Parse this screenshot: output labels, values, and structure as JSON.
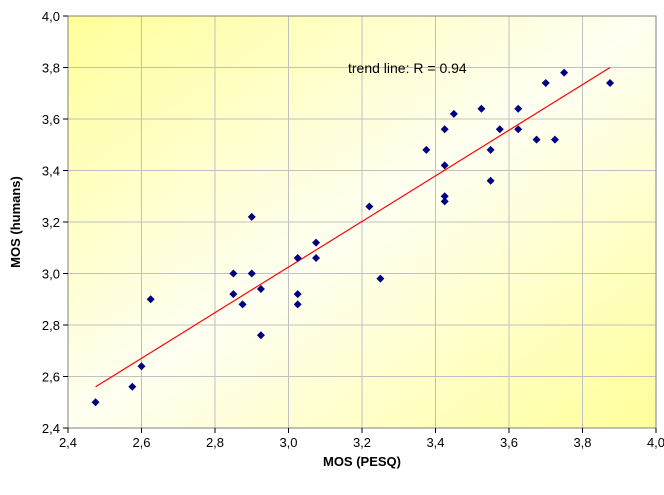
{
  "chart_data": {
    "type": "scatter",
    "xlabel": "MOS (PESQ)",
    "ylabel": "MOS (humans)",
    "xlim": [
      2.4,
      4.0
    ],
    "ylim": [
      2.4,
      4.0
    ],
    "x_ticks": [
      "2,4",
      "2,6",
      "2,8",
      "3,0",
      "3,2",
      "3,4",
      "3,6",
      "3,8",
      "4,0"
    ],
    "y_ticks": [
      "2,4",
      "2,6",
      "2,8",
      "3,0",
      "3,2",
      "3,4",
      "3,6",
      "3,8",
      "4,0"
    ],
    "x_tick_values": [
      2.4,
      2.6,
      2.8,
      3.0,
      3.2,
      3.4,
      3.6,
      3.8,
      4.0
    ],
    "y_tick_values": [
      2.4,
      2.6,
      2.8,
      3.0,
      3.2,
      3.4,
      3.6,
      3.8,
      4.0
    ],
    "grid": true,
    "points": [
      [
        2.475,
        2.5
      ],
      [
        2.575,
        2.56
      ],
      [
        2.6,
        2.64
      ],
      [
        2.625,
        2.9
      ],
      [
        2.85,
        3.0
      ],
      [
        2.85,
        2.92
      ],
      [
        2.875,
        2.88
      ],
      [
        2.9,
        3.22
      ],
      [
        2.9,
        3.0
      ],
      [
        2.925,
        2.94
      ],
      [
        2.925,
        2.76
      ],
      [
        3.025,
        3.06
      ],
      [
        3.025,
        2.92
      ],
      [
        3.025,
        2.88
      ],
      [
        3.075,
        3.12
      ],
      [
        3.075,
        3.06
      ],
      [
        3.22,
        3.26
      ],
      [
        3.25,
        2.98
      ],
      [
        3.375,
        3.48
      ],
      [
        3.425,
        3.56
      ],
      [
        3.425,
        3.42
      ],
      [
        3.425,
        3.3
      ],
      [
        3.425,
        3.28
      ],
      [
        3.45,
        3.62
      ],
      [
        3.525,
        3.64
      ],
      [
        3.55,
        3.48
      ],
      [
        3.55,
        3.36
      ],
      [
        3.575,
        3.56
      ],
      [
        3.625,
        3.64
      ],
      [
        3.625,
        3.56
      ],
      [
        3.675,
        3.52
      ],
      [
        3.7,
        3.74
      ],
      [
        3.725,
        3.52
      ],
      [
        3.75,
        3.78
      ],
      [
        3.875,
        3.74
      ]
    ],
    "trend_line": {
      "x": [
        2.475,
        3.875
      ],
      "y": [
        2.56,
        3.8
      ],
      "color": "#ff0000"
    },
    "annotation": "trend line: R = 0.94",
    "colors": {
      "marker": "#000080",
      "trend": "#ff0000",
      "grid": "#c0c0c0",
      "plot_bg_light": "#fffff2",
      "plot_bg_yellow": "#ffff9a"
    }
  }
}
